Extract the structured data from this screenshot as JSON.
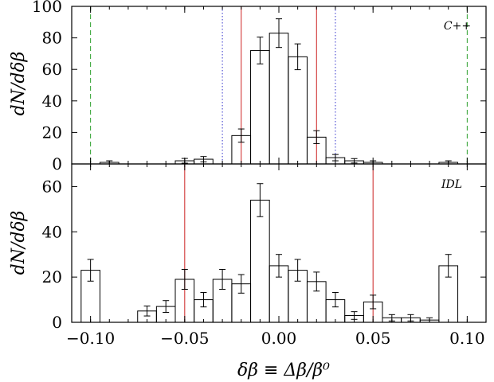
{
  "chart_data": [
    {
      "type": "bar",
      "panel_label": "C++",
      "ylabel": "dN/dδβ",
      "ylim": [
        0,
        100
      ],
      "yticks": [
        0,
        20,
        40,
        60,
        80,
        100
      ],
      "xlim": [
        -0.11,
        0.11
      ],
      "bin_width": 0.01,
      "bins": [
        {
          "x": -0.09,
          "value": 1,
          "err": 1
        },
        {
          "x": -0.05,
          "value": 2,
          "err": 1.5
        },
        {
          "x": -0.04,
          "value": 3,
          "err": 1.7
        },
        {
          "x": -0.02,
          "value": 18,
          "err": 4.2
        },
        {
          "x": -0.01,
          "value": 72,
          "err": 8.5
        },
        {
          "x": 0.0,
          "value": 83,
          "err": 9.1
        },
        {
          "x": 0.01,
          "value": 68,
          "err": 8.2
        },
        {
          "x": 0.02,
          "value": 17,
          "err": 4.1
        },
        {
          "x": 0.03,
          "value": 4,
          "err": 2
        },
        {
          "x": 0.04,
          "value": 2,
          "err": 1.4
        },
        {
          "x": 0.05,
          "value": 1,
          "err": 1
        },
        {
          "x": 0.09,
          "value": 1,
          "err": 1
        }
      ],
      "vlines": [
        {
          "x": -0.1,
          "style": "dashed",
          "color": "#2ca02c"
        },
        {
          "x": 0.1,
          "style": "dashed",
          "color": "#2ca02c"
        },
        {
          "x": -0.03,
          "style": "dotted",
          "color": "#3333cc"
        },
        {
          "x": 0.03,
          "style": "dotted",
          "color": "#3333cc"
        },
        {
          "x": -0.02,
          "style": "solid",
          "color": "#cc2222"
        },
        {
          "x": 0.02,
          "style": "solid",
          "color": "#cc2222"
        }
      ]
    },
    {
      "type": "bar",
      "panel_label": "IDL",
      "ylabel": "dN/dδβ",
      "xlabel": "δβ ≡ Δβ/β⁰",
      "ylim": [
        0,
        70
      ],
      "yticks": [
        0,
        20,
        40,
        60
      ],
      "xlim": [
        -0.11,
        0.11
      ],
      "xticks": [
        "−0.10",
        "−0.05",
        "0.00",
        "0.05",
        "0.10"
      ],
      "xtick_values": [
        -0.1,
        -0.05,
        0.0,
        0.05,
        0.1
      ],
      "bin_width": 0.01,
      "bins": [
        {
          "x": -0.1,
          "value": 23,
          "err": 4.8
        },
        {
          "x": -0.07,
          "value": 5,
          "err": 2.2
        },
        {
          "x": -0.06,
          "value": 7,
          "err": 2.6
        },
        {
          "x": -0.05,
          "value": 19,
          "err": 4.4
        },
        {
          "x": -0.04,
          "value": 10,
          "err": 3.2
        },
        {
          "x": -0.03,
          "value": 19,
          "err": 4.4
        },
        {
          "x": -0.02,
          "value": 17,
          "err": 4.1
        },
        {
          "x": -0.01,
          "value": 54,
          "err": 7.3
        },
        {
          "x": 0.0,
          "value": 25,
          "err": 5
        },
        {
          "x": 0.01,
          "value": 23,
          "err": 4.8
        },
        {
          "x": 0.02,
          "value": 18,
          "err": 4.2
        },
        {
          "x": 0.03,
          "value": 10,
          "err": 3.2
        },
        {
          "x": 0.04,
          "value": 3,
          "err": 1.7
        },
        {
          "x": 0.05,
          "value": 9,
          "err": 3
        },
        {
          "x": 0.06,
          "value": 2,
          "err": 1.4
        },
        {
          "x": 0.07,
          "value": 2,
          "err": 1.4
        },
        {
          "x": 0.08,
          "value": 1,
          "err": 1
        },
        {
          "x": 0.09,
          "value": 25,
          "err": 5
        }
      ],
      "vlines": [
        {
          "x": -0.05,
          "style": "solid",
          "color": "#cc2222"
        },
        {
          "x": 0.05,
          "style": "solid",
          "color": "#cc2222"
        }
      ]
    }
  ]
}
